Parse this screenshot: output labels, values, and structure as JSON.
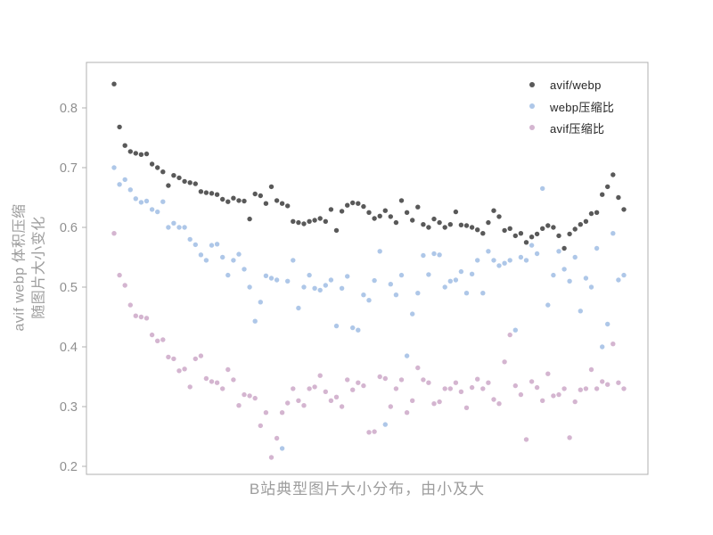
{
  "chart_data": {
    "type": "scatter",
    "title": "",
    "xlabel": "B站典型图片大小分布，由小及大",
    "ylabel_lines": [
      "avif webp 体积压缩",
      "随图片大小变化"
    ],
    "yticks": [
      0.2,
      0.3,
      0.4,
      0.5,
      0.6,
      0.7,
      0.8
    ],
    "ylim": [
      0.19,
      0.875
    ],
    "grid": false,
    "legend_position": "upper-right-inside",
    "series": [
      {
        "name": "avif/webp",
        "color": "#595959",
        "values": [
          0.84,
          0.768,
          0.737,
          0.727,
          0.724,
          0.722,
          0.723,
          0.706,
          0.7,
          0.693,
          0.67,
          0.687,
          0.683,
          0.677,
          0.675,
          0.673,
          0.66,
          0.658,
          0.657,
          0.655,
          0.647,
          0.643,
          0.649,
          0.645,
          0.644,
          0.614,
          0.656,
          0.653,
          0.64,
          0.668,
          0.645,
          0.64,
          0.636,
          0.61,
          0.608,
          0.606,
          0.61,
          0.612,
          0.615,
          0.61,
          0.63,
          0.595,
          0.627,
          0.637,
          0.641,
          0.64,
          0.635,
          0.625,
          0.615,
          0.619,
          0.628,
          0.618,
          0.608,
          0.645,
          0.625,
          0.612,
          0.634,
          0.605,
          0.6,
          0.614,
          0.608,
          0.6,
          0.605,
          0.626,
          0.604,
          0.603,
          0.6,
          0.596,
          0.59,
          0.608,
          0.628,
          0.618,
          0.595,
          0.598,
          0.586,
          0.59,
          0.575,
          0.584,
          0.589,
          0.598,
          0.603,
          0.6,
          0.586,
          0.565,
          0.589,
          0.597,
          0.605,
          0.61,
          0.623,
          0.625,
          0.655,
          0.668,
          0.688,
          0.65,
          0.63
        ]
      },
      {
        "name": "webp压缩比",
        "color": "#aec7e8",
        "values": [
          0.7,
          0.672,
          0.68,
          0.663,
          0.648,
          0.642,
          0.644,
          0.63,
          0.626,
          0.643,
          0.6,
          0.607,
          0.6,
          0.6,
          0.58,
          0.571,
          0.554,
          0.545,
          0.57,
          0.572,
          0.55,
          0.52,
          0.545,
          0.555,
          0.53,
          0.5,
          0.443,
          0.475,
          0.519,
          0.515,
          0.512,
          0.23,
          0.51,
          0.545,
          0.465,
          0.5,
          0.52,
          0.498,
          0.495,
          0.503,
          0.512,
          0.435,
          0.498,
          0.518,
          0.432,
          0.428,
          0.487,
          0.478,
          0.511,
          0.56,
          0.27,
          0.505,
          0.487,
          0.52,
          0.385,
          0.455,
          0.49,
          0.553,
          0.521,
          0.556,
          0.554,
          0.5,
          0.51,
          0.512,
          0.526,
          0.49,
          0.522,
          0.545,
          0.49,
          0.56,
          0.545,
          0.536,
          0.54,
          0.545,
          0.428,
          0.55,
          0.545,
          0.57,
          0.556,
          0.665,
          0.47,
          0.52,
          0.56,
          0.53,
          0.51,
          0.55,
          0.46,
          0.515,
          0.5,
          0.565,
          0.4,
          0.438,
          0.59,
          0.512,
          0.52
        ]
      },
      {
        "name": "avif压缩比",
        "color": "#d4b5d0",
        "values": [
          0.59,
          0.52,
          0.503,
          0.47,
          0.452,
          0.45,
          0.448,
          0.42,
          0.41,
          0.412,
          0.383,
          0.38,
          0.36,
          0.363,
          0.333,
          0.38,
          0.385,
          0.347,
          0.342,
          0.34,
          0.33,
          0.362,
          0.345,
          0.302,
          0.32,
          0.318,
          0.314,
          0.268,
          0.29,
          0.215,
          0.247,
          0.29,
          0.306,
          0.33,
          0.31,
          0.302,
          0.33,
          0.333,
          0.352,
          0.325,
          0.31,
          0.316,
          0.3,
          0.345,
          0.328,
          0.34,
          0.335,
          0.257,
          0.258,
          0.35,
          0.347,
          0.3,
          0.33,
          0.345,
          0.29,
          0.31,
          0.365,
          0.345,
          0.34,
          0.305,
          0.308,
          0.33,
          0.33,
          0.34,
          0.325,
          0.298,
          0.332,
          0.346,
          0.33,
          0.34,
          0.312,
          0.305,
          0.375,
          0.42,
          0.335,
          0.32,
          0.245,
          0.342,
          0.332,
          0.31,
          0.355,
          0.318,
          0.32,
          0.33,
          0.248,
          0.308,
          0.328,
          0.33,
          0.362,
          0.33,
          0.342,
          0.337,
          0.405,
          0.34,
          0.33
        ]
      }
    ]
  },
  "style": {
    "background": "#ffffff",
    "spine_color": "#b0b0b0",
    "tick_label_color": "#8f8f8f",
    "axis_title_color": "#9d9d9d",
    "legend_text_color": "#262626"
  }
}
